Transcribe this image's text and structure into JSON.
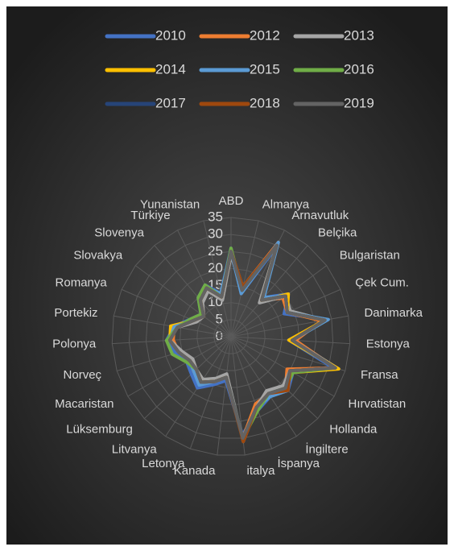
{
  "chart_data": {
    "type": "radar",
    "categories": [
      "ABD",
      "Almanya",
      "Arnavutluk",
      "Belçika",
      "Bulgaristan",
      "Çek Cum.",
      "Danimarka",
      "Estonya",
      "Fransa",
      "Hırvatistan",
      "Hollanda",
      "İngiltere",
      "İspanya",
      "italya",
      "Kanada",
      "Letonya",
      "Litvanya",
      "Lüksemburg",
      "Macaristan",
      "Norveç",
      "Polonya",
      "Portekiz",
      "Romanya",
      "Slovakya",
      "Slovenya",
      "Türkiye",
      "Yunanistan"
    ],
    "series": [
      {
        "name": "2010",
        "color": "#4472c4",
        "values": [
          26,
          13,
          29,
          15,
          21,
          17,
          29,
          17,
          31,
          21,
          23,
          21,
          23,
          29,
          13,
          15,
          18,
          16,
          15,
          17,
          19,
          17,
          13,
          11,
          15,
          17,
          13
        ]
      },
      {
        "name": "2012",
        "color": "#ed7d31",
        "values": [
          25,
          15,
          31,
          14,
          19,
          18,
          27,
          19,
          32,
          19,
          22,
          20,
          21,
          30,
          12,
          14,
          16,
          15,
          14,
          16,
          17,
          17,
          12,
          10,
          14,
          16,
          12
        ]
      },
      {
        "name": "2013",
        "color": "#a5a5a5",
        "values": [
          24,
          14,
          30,
          13,
          20,
          19,
          28,
          18,
          33,
          20,
          21,
          19,
          22,
          31,
          11,
          13,
          15,
          14,
          13,
          15,
          18,
          16,
          11,
          10,
          13,
          15,
          11
        ]
      },
      {
        "name": "2014",
        "color": "#ffc000",
        "values": [
          25,
          14,
          30,
          14,
          21,
          18,
          28,
          17,
          33,
          21,
          22,
          20,
          22,
          30,
          12,
          14,
          16,
          14,
          14,
          16,
          18,
          18,
          12,
          10,
          14,
          16,
          12
        ]
      },
      {
        "name": "2015",
        "color": "#5b9bd5",
        "values": [
          25,
          13,
          31,
          15,
          20,
          18,
          29,
          18,
          32,
          20,
          23,
          21,
          22,
          30,
          12,
          14,
          17,
          15,
          14,
          16,
          18,
          17,
          12,
          11,
          14,
          16,
          13
        ]
      },
      {
        "name": "2016",
        "color": "#70ad47",
        "values": [
          26,
          14,
          30,
          14,
          20,
          18,
          28,
          18,
          32,
          21,
          22,
          20,
          23,
          30,
          12,
          14,
          16,
          14,
          15,
          18,
          19,
          16,
          13,
          11,
          15,
          17,
          12
        ]
      },
      {
        "name": "2017",
        "color": "#264478",
        "values": [
          25,
          14,
          30,
          14,
          20,
          18,
          28,
          18,
          32,
          20,
          22,
          20,
          22,
          30,
          12,
          14,
          16,
          14,
          14,
          16,
          18,
          16,
          12,
          10,
          14,
          16,
          12
        ]
      },
      {
        "name": "2018",
        "color": "#9e480e",
        "values": [
          25,
          15,
          30,
          14,
          20,
          18,
          28,
          18,
          32,
          20,
          23,
          20,
          22,
          31,
          12,
          14,
          16,
          14,
          14,
          16,
          18,
          16,
          12,
          10,
          14,
          16,
          12
        ]
      },
      {
        "name": "2019",
        "color": "#636363",
        "values": [
          25,
          14,
          30,
          14,
          20,
          18,
          28,
          18,
          32,
          20,
          22,
          20,
          22,
          30,
          12,
          14,
          16,
          14,
          14,
          16,
          18,
          16,
          12,
          10,
          14,
          16,
          12
        ]
      }
    ],
    "ylim": [
      0,
      35
    ],
    "yticks": [
      0,
      5,
      10,
      15,
      20,
      25,
      30,
      35
    ],
    "grid": true
  }
}
